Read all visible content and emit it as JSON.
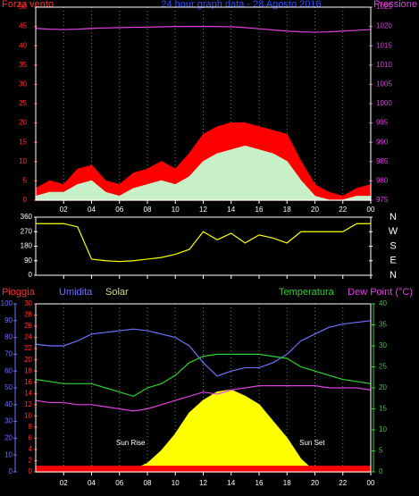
{
  "chart_data": [
    {
      "type": "line",
      "title": "24 hour graph data - 28 Agosto 2016",
      "grid": true,
      "xlim": [
        0,
        24
      ],
      "xticks": [
        {
          "value": 2,
          "label": "02"
        },
        {
          "value": 4,
          "label": "04"
        },
        {
          "value": 6,
          "label": "06"
        },
        {
          "value": 8,
          "label": "08"
        },
        10,
        12,
        14,
        16,
        18,
        20,
        22,
        {
          "value": 24,
          "label": "00"
        }
      ],
      "x": [
        0,
        1,
        2,
        3,
        4,
        5,
        6,
        7,
        8,
        9,
        10,
        11,
        12,
        13,
        14,
        15,
        16,
        17,
        18,
        19,
        20,
        21,
        22,
        23,
        24
      ],
      "axes": [
        {
          "label": "Forza vento",
          "color": "#ff3030",
          "lim": [
            0,
            50
          ],
          "ticks": [
            0,
            5,
            10,
            15,
            20,
            25,
            30,
            35,
            40,
            45,
            50
          ]
        },
        {
          "label": "Pressione",
          "color": "#e040e0",
          "lim": [
            975,
            1025
          ],
          "ticks": [
            975,
            980,
            985,
            990,
            995,
            1000,
            1005,
            1010,
            1015,
            1020,
            1025
          ]
        }
      ],
      "series": [
        {
          "color": "#ff0000",
          "axis": 0,
          "fill": true,
          "values": [
            3,
            5,
            4,
            8,
            9,
            5,
            4,
            7,
            8,
            10,
            8,
            12,
            17,
            19,
            20,
            20,
            19,
            18,
            17,
            10,
            4,
            2,
            1,
            3,
            4
          ]
        },
        {
          "color": "#c8f0c8",
          "axis": 0,
          "fill": true,
          "values": [
            1,
            2,
            2,
            4,
            5,
            2,
            1,
            3,
            4,
            5,
            4,
            6,
            10,
            12,
            13,
            14,
            13,
            12,
            10,
            5,
            1,
            0,
            0,
            1,
            1
          ]
        },
        {
          "color": "#e040e0",
          "axis": 1,
          "fill": false,
          "values": [
            1019.5,
            1019.3,
            1019.2,
            1019.3,
            1019.5,
            1019.6,
            1019.7,
            1019.8,
            1019.8,
            1019.9,
            1020,
            1020,
            1020,
            1020,
            1019.9,
            1019.7,
            1019.4,
            1019.1,
            1018.8,
            1018.6,
            1018.5,
            1018.6,
            1018.8,
            1019,
            1019.2
          ]
        }
      ]
    },
    {
      "type": "line",
      "grid": false,
      "xlim": [
        0,
        24
      ],
      "xticks": [
        2,
        4,
        6,
        8,
        10,
        12,
        14,
        16,
        18,
        20,
        22,
        24
      ],
      "x": [
        0,
        1,
        2,
        3,
        4,
        5,
        6,
        7,
        8,
        9,
        10,
        11,
        12,
        13,
        14,
        15,
        16,
        17,
        18,
        19,
        20,
        21,
        22,
        23,
        24
      ],
      "axes": [
        {
          "color": "#ffffff",
          "lim": [
            0,
            360
          ],
          "ticks": [
            0,
            90,
            180,
            270,
            360
          ]
        },
        {
          "color": "#ffffff",
          "lim": [
            0,
            360
          ],
          "ticks": [
            {
              "value": 360,
              "label": "N"
            },
            {
              "value": 270,
              "label": "W"
            },
            {
              "value": 180,
              "label": "S"
            },
            {
              "value": 90,
              "label": "E"
            },
            {
              "value": 0,
              "label": "N"
            }
          ]
        }
      ],
      "series": [
        {
          "color": "#ffff00",
          "axis": 0,
          "fill": false,
          "values": [
            320,
            320,
            320,
            300,
            100,
            90,
            85,
            90,
            100,
            110,
            130,
            160,
            270,
            220,
            260,
            200,
            250,
            230,
            200,
            270,
            270,
            270,
            270,
            320,
            320
          ]
        }
      ]
    },
    {
      "type": "line",
      "grid": true,
      "xlim": [
        0,
        24
      ],
      "xticks": [
        {
          "value": 2,
          "label": "02"
        },
        {
          "value": 4,
          "label": "04"
        },
        {
          "value": 6,
          "label": "06"
        },
        {
          "value": 8,
          "label": "08"
        },
        10,
        12,
        14,
        16,
        18,
        20,
        22,
        {
          "value": 24,
          "label": "00"
        }
      ],
      "x": [
        0,
        1,
        2,
        3,
        4,
        5,
        6,
        7,
        8,
        9,
        10,
        11,
        12,
        13,
        14,
        15,
        16,
        17,
        18,
        19,
        20,
        21,
        22,
        23,
        24
      ],
      "axes": [
        {
          "label": "Pioggia",
          "color": "#ff3030",
          "lim": [
            0,
            30
          ],
          "ticks": [
            0,
            2,
            4,
            6,
            8,
            10,
            12,
            14,
            16,
            18,
            20,
            22,
            24,
            26,
            28,
            30
          ]
        },
        {
          "label": "Umidita",
          "color": "#7070ff",
          "lim": [
            0,
            100
          ],
          "ticks": [
            0,
            10,
            20,
            30,
            40,
            50,
            60,
            70,
            80,
            90,
            100
          ]
        },
        {
          "label": "Temperatura",
          "color": "#30d030",
          "lim": [
            0,
            40
          ],
          "ticks": [
            0,
            5,
            10,
            15,
            20,
            25,
            30,
            35,
            40
          ]
        }
      ],
      "series": [
        {
          "name": "Solar",
          "color": "#ffff00",
          "axis": 2,
          "fill": true,
          "values": [
            0,
            0,
            0,
            0,
            0,
            0,
            0,
            0.5,
            2,
            5,
            9,
            14,
            17,
            19,
            19.5,
            18,
            16,
            12,
            8,
            3,
            0,
            0,
            0,
            0,
            0
          ]
        },
        {
          "color": "#ff0000",
          "axis": 0,
          "fill": true,
          "values": [
            1,
            1,
            1,
            1,
            1,
            1,
            1,
            1,
            1,
            1,
            1,
            1,
            1,
            1,
            1,
            1,
            1,
            1,
            1,
            1,
            1,
            1,
            1,
            1,
            1
          ]
        },
        {
          "color": "#7070ff",
          "axis": 1,
          "fill": false,
          "values": [
            76,
            75,
            75,
            78,
            82,
            83,
            84,
            85,
            84,
            82,
            80,
            75,
            65,
            57,
            60,
            62,
            62,
            65,
            70,
            78,
            82,
            86,
            88,
            89,
            90
          ]
        },
        {
          "color": "#30d030",
          "axis": 2,
          "fill": false,
          "values": [
            22,
            21.5,
            21,
            21,
            21,
            20,
            19,
            18,
            20,
            21,
            23,
            26,
            27.5,
            28,
            28,
            28,
            28,
            27.5,
            27,
            25,
            24,
            23,
            22,
            21.5,
            21
          ]
        },
        {
          "name": "Dew Point (°C)",
          "color": "#e040e0",
          "axis": 2,
          "fill": false,
          "values": [
            17,
            16.5,
            16.5,
            16,
            16,
            15.5,
            15,
            14.5,
            15,
            16,
            17,
            18,
            19,
            18.5,
            19.5,
            20,
            20.5,
            20.5,
            20.5,
            20.5,
            20.5,
            20,
            20,
            20,
            19.5
          ]
        }
      ],
      "annotations": [
        "Sun Rise",
        "Sun Set"
      ]
    }
  ]
}
